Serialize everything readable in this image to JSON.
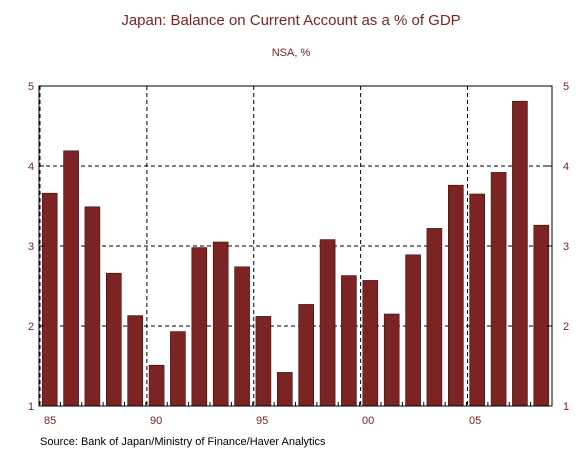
{
  "colors": {
    "bar_fill": "#7b2423",
    "bar_stroke": "#3d0f0f",
    "text_accent": "#7b2423",
    "axis": "#000000",
    "grid": "#000000"
  },
  "chart_data": {
    "type": "bar",
    "title": "Japan: Balance on Current Account as a % of GDP",
    "subtitle": "NSA, %",
    "source": "Source:  Bank of Japan/Ministry of Finance/Haver Analytics",
    "categories": [
      "1985",
      "1986",
      "1987",
      "1988",
      "1989",
      "1990",
      "1991",
      "1992",
      "1993",
      "1994",
      "1995",
      "1996",
      "1997",
      "1998",
      "1999",
      "2000",
      "2001",
      "2002",
      "2003",
      "2004",
      "2005",
      "2006",
      "2007",
      "2008"
    ],
    "values": [
      3.66,
      4.19,
      3.49,
      2.66,
      2.13,
      1.51,
      1.93,
      2.98,
      3.05,
      2.74,
      2.12,
      1.42,
      2.27,
      3.08,
      2.63,
      2.57,
      2.15,
      2.89,
      3.22,
      3.76,
      3.65,
      3.92,
      4.81,
      3.26
    ],
    "xtick_labels": [
      "85",
      "90",
      "95",
      "00",
      "05"
    ],
    "ytick_labels": [
      "1",
      "2",
      "3",
      "4",
      "5"
    ],
    "ylim": [
      1,
      5
    ],
    "grid": true,
    "grid_style": "dashed"
  }
}
